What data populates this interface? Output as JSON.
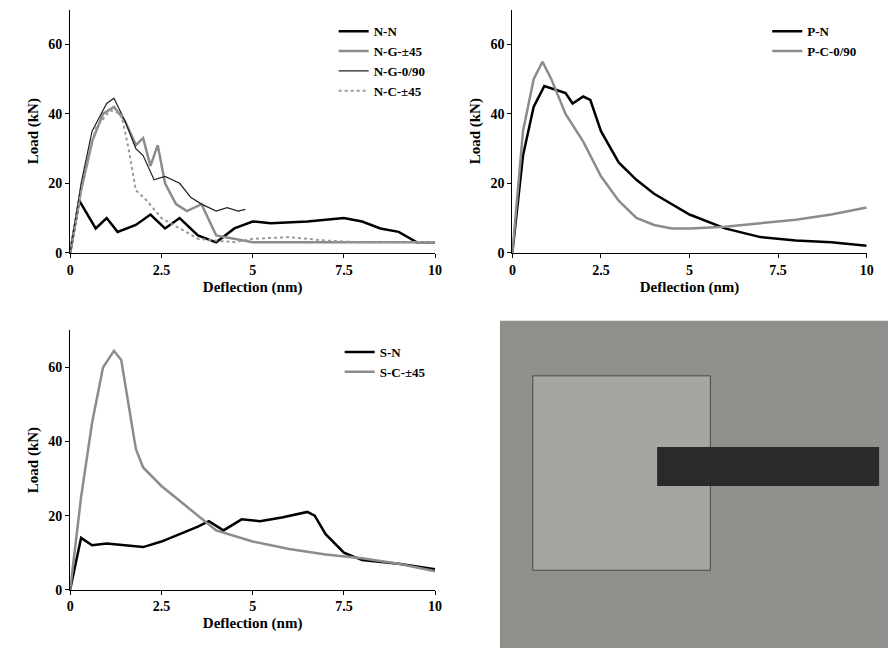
{
  "chart_data": [
    {
      "type": "line",
      "x_label": "Deflection (nm)",
      "y_label": "Load (kN)",
      "xlim": [
        0,
        10
      ],
      "xticks": [
        0,
        2.5,
        5,
        7.5,
        10
      ],
      "ylim": [
        0,
        70
      ],
      "yticks": [
        0,
        20,
        40,
        60
      ],
      "grid": false,
      "legend": "top right",
      "series": [
        {
          "name": "N-N",
          "color": "#000000",
          "line_style": "solid",
          "x": [
            0,
            0.25,
            0.7,
            1.0,
            1.3,
            1.8,
            2.2,
            2.6,
            3.0,
            3.5,
            4.0,
            4.5,
            5.0,
            5.5,
            6.5,
            7.5,
            8.0,
            8.5,
            9.0,
            9.5,
            10
          ],
          "values": [
            0,
            15,
            7,
            10,
            6,
            8,
            11,
            7,
            10,
            5,
            3,
            7,
            9,
            8.5,
            9,
            10,
            9,
            7,
            6,
            3,
            3
          ]
        },
        {
          "name": "N-G-±45",
          "color": "#8c8c8c",
          "line_style": "solid",
          "x": [
            0,
            0.3,
            0.6,
            0.9,
            1.2,
            1.5,
            1.8,
            2.0,
            2.2,
            2.4,
            2.6,
            2.9,
            3.2,
            3.6,
            4.0,
            5,
            7,
            10
          ],
          "values": [
            0,
            18,
            32,
            40,
            42,
            38,
            31,
            33,
            25,
            31,
            20,
            14,
            12,
            14,
            5,
            3,
            3,
            3
          ]
        },
        {
          "name": "N-G-0/90",
          "color": "#222222",
          "line_style": "thin",
          "x": [
            0,
            0.3,
            0.6,
            1.0,
            1.2,
            1.5,
            1.8,
            2.0,
            2.3,
            2.6,
            3.0,
            3.3,
            3.6,
            4.0,
            4.3,
            4.6,
            4.8
          ],
          "values": [
            0,
            20,
            35,
            43,
            44.5,
            38,
            30,
            28,
            21,
            22,
            20,
            16,
            14,
            12,
            13,
            12,
            12.5
          ]
        },
        {
          "name": "N-C-±45",
          "color": "#9a9a9a",
          "line_style": "dotted",
          "x": [
            0,
            0.3,
            0.7,
            1.1,
            1.4,
            1.6,
            1.8,
            2.1,
            2.5,
            3.0,
            3.5,
            4.5,
            5,
            6,
            7,
            8,
            10
          ],
          "values": [
            0,
            18,
            36,
            41,
            40,
            30,
            18,
            15,
            10,
            7,
            4,
            3,
            4,
            4.5,
            3.5,
            3,
            3
          ]
        }
      ]
    },
    {
      "type": "line",
      "x_label": "Deflection (nm)",
      "y_label": "Load (kN)",
      "xlim": [
        0,
        10
      ],
      "xticks": [
        0,
        2.5,
        5,
        7.5,
        10
      ],
      "ylim": [
        0,
        70
      ],
      "yticks": [
        0,
        20,
        40,
        60
      ],
      "grid": false,
      "legend": "top right",
      "series": [
        {
          "name": "P-N",
          "color": "#000000",
          "line_style": "solid",
          "x": [
            0,
            0.3,
            0.6,
            0.9,
            1.2,
            1.5,
            1.7,
            2.0,
            2.2,
            2.5,
            3.0,
            3.5,
            4.0,
            5.0,
            6.0,
            7.0,
            8,
            9,
            10
          ],
          "values": [
            0,
            28,
            42,
            48,
            47,
            46,
            43,
            45,
            44,
            35,
            26,
            21,
            17,
            11,
            7,
            4.5,
            3.5,
            3,
            2
          ]
        },
        {
          "name": "P-C-0/90",
          "color": "#8c8c8c",
          "line_style": "solid",
          "x": [
            0,
            0.3,
            0.6,
            0.85,
            1.1,
            1.5,
            2.0,
            2.5,
            3.0,
            3.5,
            4.0,
            4.5,
            5.0,
            6,
            7,
            8,
            9,
            10
          ],
          "values": [
            0,
            35,
            50,
            55,
            50,
            40,
            32,
            22,
            15,
            10,
            8,
            7,
            7,
            7.5,
            8.5,
            9.5,
            11,
            13
          ]
        }
      ]
    },
    {
      "type": "line",
      "x_label": "Deflection (nm)",
      "y_label": "Load (kN)",
      "xlim": [
        0,
        10
      ],
      "xticks": [
        0,
        2.5,
        5,
        7.5,
        10
      ],
      "ylim": [
        0,
        70
      ],
      "yticks": [
        0,
        20,
        40,
        60
      ],
      "grid": false,
      "legend": "top right",
      "series": [
        {
          "name": "S-N",
          "color": "#000000",
          "line_style": "solid",
          "x": [
            0,
            0.3,
            0.6,
            1.0,
            1.5,
            2.0,
            2.5,
            3.0,
            3.5,
            3.8,
            4.2,
            4.7,
            5.2,
            5.8,
            6.5,
            6.7,
            7.0,
            7.5,
            8.0,
            9,
            10
          ],
          "values": [
            0,
            14,
            12,
            12.5,
            12,
            11.5,
            13,
            15,
            17,
            18.5,
            16,
            19,
            18.5,
            19.5,
            21,
            20,
            15,
            10,
            8,
            7,
            5.5
          ]
        },
        {
          "name": "S-C-±45",
          "color": "#8c8c8c",
          "line_style": "solid",
          "x": [
            0,
            0.3,
            0.6,
            0.9,
            1.2,
            1.4,
            1.6,
            1.8,
            2.0,
            2.5,
            3.0,
            3.5,
            4.0,
            5,
            6,
            7,
            8,
            9,
            10
          ],
          "values": [
            0,
            25,
            45,
            60,
            64.5,
            62,
            50,
            38,
            33,
            28,
            24,
            20,
            16,
            13,
            11,
            9.5,
            8.5,
            7,
            5
          ]
        }
      ]
    }
  ]
}
